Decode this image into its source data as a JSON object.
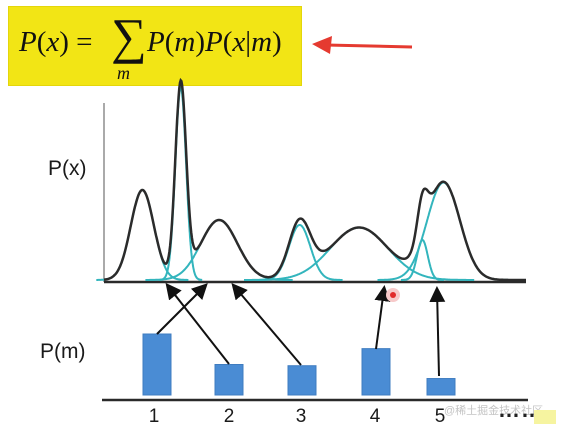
{
  "formula": {
    "lhs": "P(x) = ",
    "sum": "∑",
    "sum_index": "m",
    "rhs": "P(m)P(x|m)"
  },
  "labels": {
    "px": "P(x)",
    "pm": "P(m)"
  },
  "categories": [
    "1",
    "2",
    "3",
    "4",
    "5"
  ],
  "ellipsis": "……",
  "watermark": "@稀土掘金技术社区",
  "colors": {
    "highlight": "#f2e515",
    "arrow_red": "#e53a30",
    "mixture": "#2b2b2b",
    "component": "#33b5bd",
    "bar": "#4a8cd4",
    "axis": "#2a2a2a"
  },
  "chart_data": {
    "type": "bar",
    "categories": [
      "1",
      "2",
      "3",
      "4",
      "5"
    ],
    "values": [
      1.0,
      0.5,
      0.48,
      0.76,
      0.27
    ],
    "ylabel": "P(m)",
    "components": [
      {
        "category": "1",
        "mean": 1,
        "sd": 0.3,
        "peak": 0.36
      },
      {
        "category": "2",
        "mean": 2,
        "sd": 0.14,
        "peak": 0.77
      },
      {
        "category": "3",
        "mean": 3,
        "sd": 0.48,
        "peak": 0.24
      },
      {
        "category": "4",
        "mean": 5.1,
        "sd": 0.28,
        "peak": 0.22
      },
      {
        "category": "5",
        "mean": 6.65,
        "sd": 0.75,
        "peak": 0.21
      },
      {
        "category": "6",
        "mean": 8.3,
        "sd": 0.14,
        "peak": 0.16
      },
      {
        "category": "7",
        "mean": 8.85,
        "sd": 0.43,
        "peak": 0.39
      }
    ],
    "xlim": [
      0,
      11
    ]
  }
}
